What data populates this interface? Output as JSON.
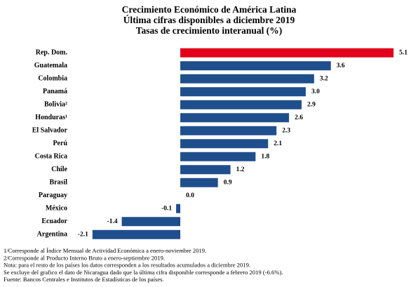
{
  "chart_data": {
    "type": "hbar",
    "title": [
      "Crecimiento Económico de América Latina",
      "Última cifras disponibles a diciembre 2019",
      "Tasas de crecimiento interanual (%)"
    ],
    "categories": [
      "Rep. Dom.",
      "Guatemala",
      "Colombia",
      "Panamá",
      "Bolivia²",
      "Honduras¹",
      "El Salvador",
      "Perú",
      "Costa Rica",
      "Chile",
      "Brasil",
      "Paraguay",
      "México",
      "Ecuador",
      "Argentina"
    ],
    "values": [
      5.1,
      3.6,
      3.2,
      3.0,
      2.9,
      2.6,
      2.3,
      2.1,
      1.8,
      1.2,
      0.9,
      0.0,
      -0.1,
      -1.4,
      -2.1
    ],
    "value_labels": [
      "5.1",
      "3.6",
      "3.2",
      "3.0",
      "2.9",
      "2.6",
      "2.3",
      "2.1",
      "1.8",
      "1.2",
      "0.9",
      "0.0",
      "-0.1",
      "-1.4",
      "-2.1"
    ],
    "colors": [
      "#e3001b",
      "#1f4e8c",
      "#1f4e8c",
      "#1f4e8c",
      "#1f4e8c",
      "#1f4e8c",
      "#1f4e8c",
      "#1f4e8c",
      "#1f4e8c",
      "#1f4e8c",
      "#1f4e8c",
      "#1f4e8c",
      "#1f4e8c",
      "#1f4e8c",
      "#1f4e8c"
    ],
    "xlim": [
      -2.5,
      5.5
    ],
    "footnotes": [
      "1/Corresponde al Índice Mensual de Actividad Económica a enero-noviembre 2019.",
      "2/Corresponde al Producto Interno Bruto a enero-septiembre 2019.",
      "Nota: para el resto de los países los datos corresponden a los resultados acumulados a diciembre 2019.",
      "Se excluye del grafico el dato de Nicaragua dado que la última cifra disponible corresponde a febrero 2019 (-6.6%).",
      "Fuente: Bancos Centrales e Institutos de Estadísticas de los países."
    ]
  }
}
